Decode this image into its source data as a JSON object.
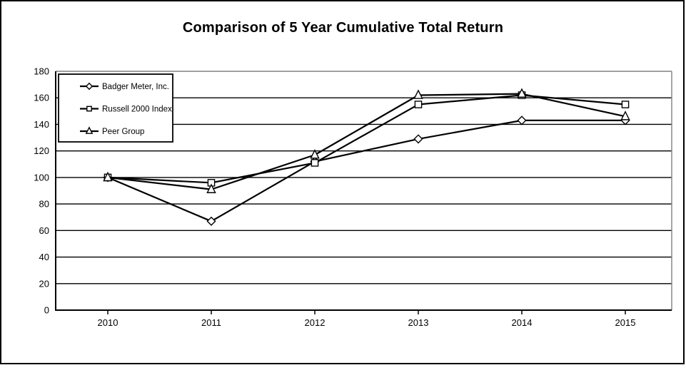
{
  "chart_data": {
    "type": "line",
    "title": "Comparison of 5 Year Cumulative Total Return",
    "categories": [
      "2010",
      "2011",
      "2012",
      "2013",
      "2014",
      "2015"
    ],
    "series": [
      {
        "name": "Badger Meter, Inc.",
        "marker": "diamond",
        "color": "#000000",
        "values": [
          100,
          67,
          112,
          129,
          143,
          143
        ]
      },
      {
        "name": "Russell 2000 Index",
        "marker": "square",
        "color": "#000000",
        "values": [
          100,
          96,
          111,
          155,
          162,
          155
        ]
      },
      {
        "name": "Peer Group",
        "marker": "triangle",
        "color": "#000000",
        "values": [
          100,
          91,
          117,
          162,
          163,
          146
        ]
      }
    ],
    "xlabel": "",
    "ylabel": "",
    "ylim": [
      0,
      180
    ],
    "ytick_step": 20,
    "ytick_labels": [
      "0",
      "20",
      "40",
      "60",
      "80",
      "100",
      "120",
      "140",
      "160",
      "180"
    ],
    "grid": "horizontal",
    "legend_position": "top-left",
    "line_color": "#000000",
    "marker_fill": "#ffffff",
    "plot_border_color": "#808080",
    "axis_color": "#000000",
    "background": "#ffffff"
  }
}
